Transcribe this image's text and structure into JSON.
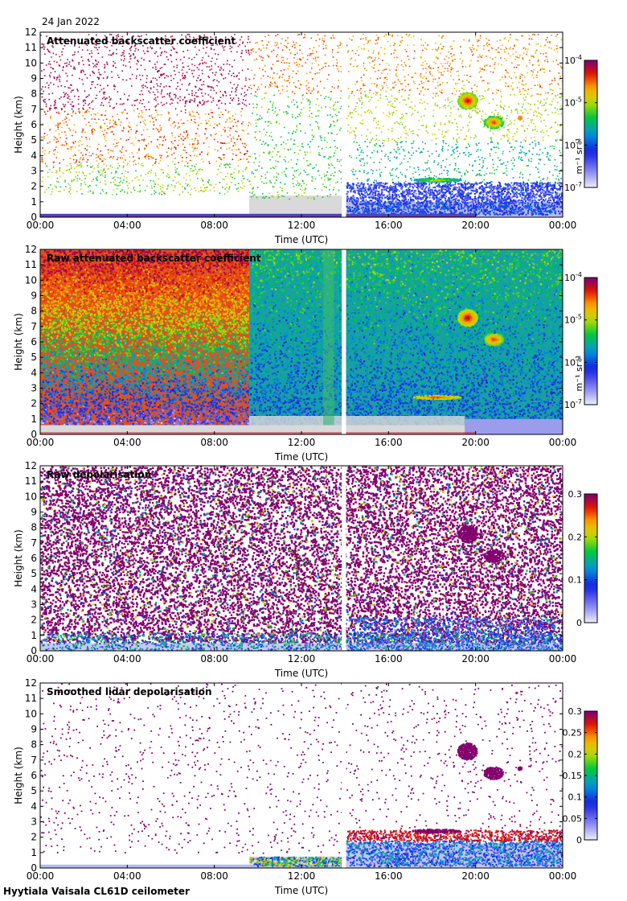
{
  "date_label": "24 Jan 2022",
  "site_label": "Hyytiala Vaisala CL61D ceilometer",
  "chart_data": [
    {
      "type": "heatmap",
      "title": "Attenuated backscatter coefficient",
      "xlabel": "Time (UTC)",
      "ylabel": "Height (km)",
      "x_ticks": [
        "00:00",
        "04:00",
        "08:00",
        "12:00",
        "16:00",
        "20:00",
        "00:00"
      ],
      "y_ticks": [
        "0",
        "1",
        "2",
        "3",
        "4",
        "5",
        "6",
        "7",
        "8",
        "9",
        "10",
        "11",
        "12"
      ],
      "ylim": [
        0,
        12
      ],
      "xlim_hours": [
        0,
        24
      ],
      "colorbar": {
        "label": "m⁻¹ sr⁻¹",
        "scale": "log",
        "ticks": [
          {
            "base": "10",
            "exp": "-4"
          },
          {
            "base": "10",
            "exp": "-5"
          },
          {
            "base": "10",
            "exp": "-6"
          },
          {
            "base": "10",
            "exp": "-7"
          }
        ]
      },
      "features": [
        {
          "desc": "sparse noise points",
          "t_hours": [
            0,
            24
          ],
          "height_km": [
            0,
            12
          ]
        },
        {
          "desc": "near-surface layer",
          "t_hours": [
            0,
            20
          ],
          "height_km": [
            0,
            0.3
          ]
        },
        {
          "desc": "boundary layer aerosol",
          "t_hours": [
            14,
            24
          ],
          "height_km": [
            0,
            2.2
          ]
        },
        {
          "desc": "low cloud",
          "t_hours": [
            17.2,
            19.3
          ],
          "height_km": [
            2.3,
            2.6
          ]
        },
        {
          "desc": "cirrus cloud",
          "t_hours": [
            19.0,
            21.3
          ],
          "height_km": [
            5.6,
            8.3
          ]
        },
        {
          "desc": "data gap",
          "t_hours": [
            13.85,
            14.05
          ],
          "height_km": [
            0,
            12
          ]
        }
      ]
    },
    {
      "type": "heatmap",
      "title": "Raw attenuated backscatter coefficient",
      "xlabel": "Time (UTC)",
      "ylabel": "Height (km)",
      "x_ticks": [
        "00:00",
        "04:00",
        "08:00",
        "12:00",
        "16:00",
        "20:00",
        "00:00"
      ],
      "y_ticks": [
        "0",
        "1",
        "2",
        "3",
        "4",
        "5",
        "6",
        "7",
        "8",
        "9",
        "10",
        "11",
        "12"
      ],
      "ylim": [
        0,
        12
      ],
      "xlim_hours": [
        0,
        24
      ],
      "colorbar": {
        "label": "m⁻¹ sr⁻¹",
        "scale": "log",
        "ticks": [
          {
            "base": "10",
            "exp": "-4"
          },
          {
            "base": "10",
            "exp": "-5"
          },
          {
            "base": "10",
            "exp": "-6"
          },
          {
            "base": "10",
            "exp": "-7"
          }
        ]
      },
      "features": [
        {
          "desc": "high noise background",
          "t_hours": [
            0,
            9.6
          ],
          "height_km": [
            0.5,
            12
          ]
        },
        {
          "desc": "moderate noise background",
          "t_hours": [
            9.6,
            24
          ],
          "height_km": [
            0.5,
            12
          ]
        },
        {
          "desc": "low cloud",
          "t_hours": [
            17.2,
            19.3
          ],
          "height_km": [
            2.3,
            2.6
          ]
        },
        {
          "desc": "cirrus cloud",
          "t_hours": [
            19.0,
            21.3
          ],
          "height_km": [
            5.6,
            8.3
          ]
        },
        {
          "desc": "data gap",
          "t_hours": [
            13.85,
            14.05
          ],
          "height_km": [
            0,
            12
          ]
        }
      ]
    },
    {
      "type": "heatmap",
      "title": "Raw depolarisation",
      "xlabel": "Time (UTC)",
      "ylabel": "Height (km)",
      "x_ticks": [
        "00:00",
        "04:00",
        "08:00",
        "12:00",
        "16:00",
        "20:00",
        "00:00"
      ],
      "y_ticks": [
        "0",
        "1",
        "2",
        "3",
        "4",
        "5",
        "6",
        "7",
        "8",
        "9",
        "10",
        "11",
        "12"
      ],
      "ylim": [
        0,
        12
      ],
      "xlim_hours": [
        0,
        24
      ],
      "colorbar": {
        "label": "",
        "scale": "linear",
        "range": [
          0,
          0.3
        ],
        "ticks": [
          "0.3",
          "0.2",
          "0.1",
          "0"
        ]
      },
      "features": [
        {
          "desc": "noise field",
          "t_hours": [
            0,
            24
          ],
          "height_km": [
            0,
            12
          ]
        },
        {
          "desc": "low depolarisation aerosol",
          "t_hours": [
            14,
            24
          ],
          "height_km": [
            0,
            1.5
          ]
        },
        {
          "desc": "cirrus cloud",
          "t_hours": [
            19.0,
            21.3
          ],
          "height_km": [
            5.6,
            8.3
          ]
        },
        {
          "desc": "data gap",
          "t_hours": [
            13.85,
            14.05
          ],
          "height_km": [
            0,
            12
          ]
        }
      ]
    },
    {
      "type": "heatmap",
      "title": "Smoothed lidar depolarisation",
      "xlabel": "Time (UTC)",
      "ylabel": "Height (km)",
      "x_ticks": [
        "00:00",
        "04:00",
        "08:00",
        "12:00",
        "16:00",
        "20:00",
        "00:00"
      ],
      "y_ticks": [
        "0",
        "1",
        "2",
        "3",
        "4",
        "5",
        "6",
        "7",
        "8",
        "9",
        "10",
        "11",
        "12"
      ],
      "ylim": [
        0,
        12
      ],
      "xlim_hours": [
        0,
        24
      ],
      "colorbar": {
        "label": "",
        "scale": "linear",
        "range": [
          0,
          0.3
        ],
        "ticks": [
          "0.3",
          "0.25",
          "0.2",
          "0.15",
          "0.1",
          "0.05",
          "0"
        ]
      },
      "features": [
        {
          "desc": "sparse noise points",
          "t_hours": [
            0,
            24
          ],
          "height_km": [
            0,
            12
          ]
        },
        {
          "desc": "near-surface layer",
          "t_hours": [
            0,
            24
          ],
          "height_km": [
            0,
            0.25
          ]
        },
        {
          "desc": "boundary layer aerosol",
          "t_hours": [
            9.6,
            24
          ],
          "height_km": [
            0.2,
            2.5
          ]
        },
        {
          "desc": "cirrus cloud",
          "t_hours": [
            19.0,
            21.3
          ],
          "height_km": [
            5.6,
            8.3
          ]
        },
        {
          "desc": "data gap",
          "t_hours": [
            13.85,
            14.05
          ],
          "height_km": [
            0,
            12
          ]
        }
      ]
    }
  ]
}
